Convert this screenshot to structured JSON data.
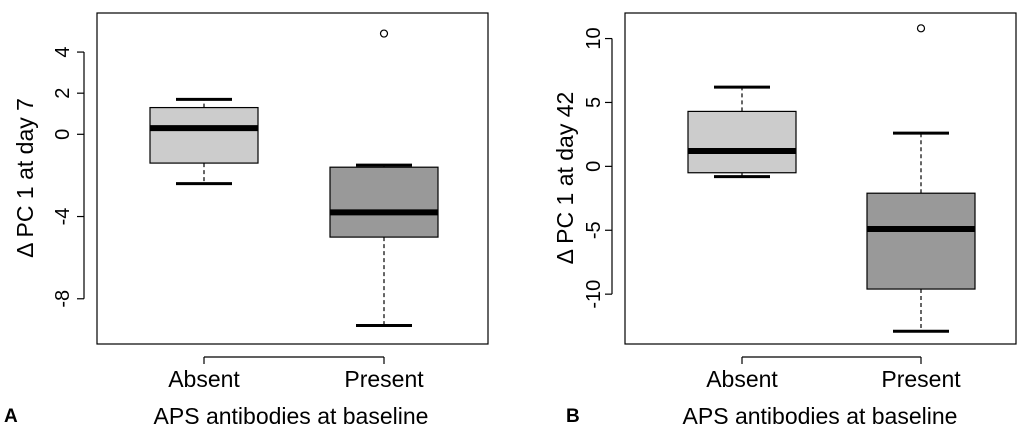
{
  "chart_data": [
    {
      "type": "boxplot",
      "panel_label": "A",
      "ylabel": "Δ PC 1 at day 7",
      "xlabel": "APS antibodies at baseline",
      "categories": [
        "Absent",
        "Present"
      ],
      "ylim": [
        -10.2,
        5.9
      ],
      "yticks": [
        "4",
        "2",
        "0",
        "-4",
        "-8"
      ],
      "ytick_values": [
        4,
        2,
        0,
        -4,
        -8
      ],
      "boxes": [
        {
          "name": "Absent",
          "color": "#cccccc",
          "whisker_low": -2.4,
          "q1": -1.4,
          "median": 0.3,
          "q3": 1.3,
          "whisker_high": 1.7,
          "outliers": []
        },
        {
          "name": "Present",
          "color": "#999999",
          "whisker_low": -9.3,
          "q1": -5.0,
          "median": -3.8,
          "q3": -1.6,
          "whisker_high": -1.5,
          "outliers": [
            4.9
          ]
        }
      ]
    },
    {
      "type": "boxplot",
      "panel_label": "B",
      "ylabel": "Δ PC 1 at day 42",
      "xlabel": "APS antibodies at baseline",
      "categories": [
        "Absent",
        "Present"
      ],
      "ylim": [
        -13.9,
        12.0
      ],
      "yticks": [
        "10",
        "5",
        "0",
        "-5",
        "-10"
      ],
      "ytick_values": [
        10,
        5,
        0,
        -5,
        -10
      ],
      "boxes": [
        {
          "name": "Absent",
          "color": "#cccccc",
          "whisker_low": -0.8,
          "q1": -0.5,
          "median": 1.2,
          "q3": 4.3,
          "whisker_high": 6.2,
          "outliers": []
        },
        {
          "name": "Present",
          "color": "#999999",
          "whisker_low": -12.9,
          "q1": -9.6,
          "median": -4.9,
          "q3": -2.1,
          "whisker_high": 2.6,
          "outliers": [
            10.8
          ]
        }
      ]
    }
  ]
}
